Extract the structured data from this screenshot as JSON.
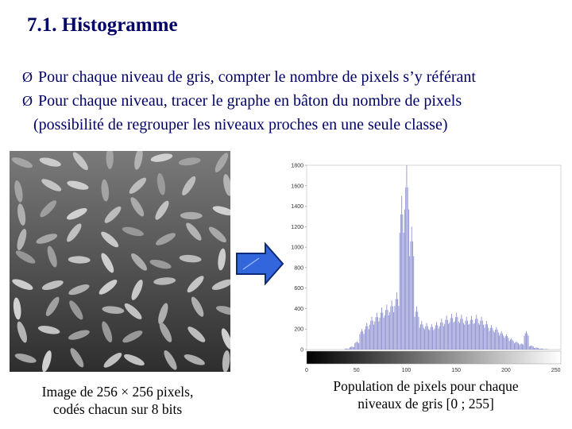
{
  "slide": {
    "title": "7.1. Histogramme",
    "bullets": [
      {
        "marker": "Ø",
        "text": "Pour chaque niveau de gris, compter le nombre de pixels s’y référant"
      },
      {
        "marker": "Ø",
        "text": "Pour chaque niveau,  tracer le graphe en bâton du nombre de pixels"
      },
      {
        "marker": "",
        "text": "(possibilité de regrouper les niveaux proches en une seule classe)"
      }
    ],
    "caption_left": [
      "Image de 256 × 256 pixels,",
      "codés chacun sur  8 bits"
    ],
    "caption_right": [
      "Population de pixels pour chaque",
      "niveaux de gris [0 ; 255]"
    ],
    "arrow_icon": "right-arrow-icon",
    "colors": {
      "title": "#000066",
      "arrow_fill": "#3366dd",
      "bar": "#8b8fd0"
    }
  },
  "chart_data": {
    "type": "bar",
    "x_ticks": [
      0,
      50,
      100,
      150,
      200,
      250
    ],
    "y_ticks": [
      0,
      200,
      400,
      600,
      800,
      1000,
      1200,
      1400,
      1600,
      1800
    ],
    "xlim": [
      0,
      255
    ],
    "ylim": [
      0,
      1800
    ],
    "x": [
      40,
      45,
      50,
      55,
      60,
      65,
      70,
      75,
      80,
      85,
      90,
      95,
      100,
      105,
      110,
      115,
      120,
      125,
      130,
      135,
      140,
      145,
      150,
      155,
      160,
      165,
      170,
      175,
      180,
      185,
      190,
      195,
      200,
      205,
      210,
      215,
      220,
      225,
      230,
      235,
      240
    ],
    "values": [
      10,
      30,
      80,
      200,
      260,
      320,
      360,
      410,
      440,
      480,
      560,
      1500,
      1800,
      1200,
      420,
      280,
      260,
      250,
      270,
      300,
      330,
      350,
      360,
      340,
      320,
      330,
      340,
      320,
      280,
      240,
      220,
      180,
      150,
      110,
      80,
      60,
      180,
      40,
      20,
      10,
      5
    ],
    "gradient_bar": "grayscale 0 to 255"
  }
}
